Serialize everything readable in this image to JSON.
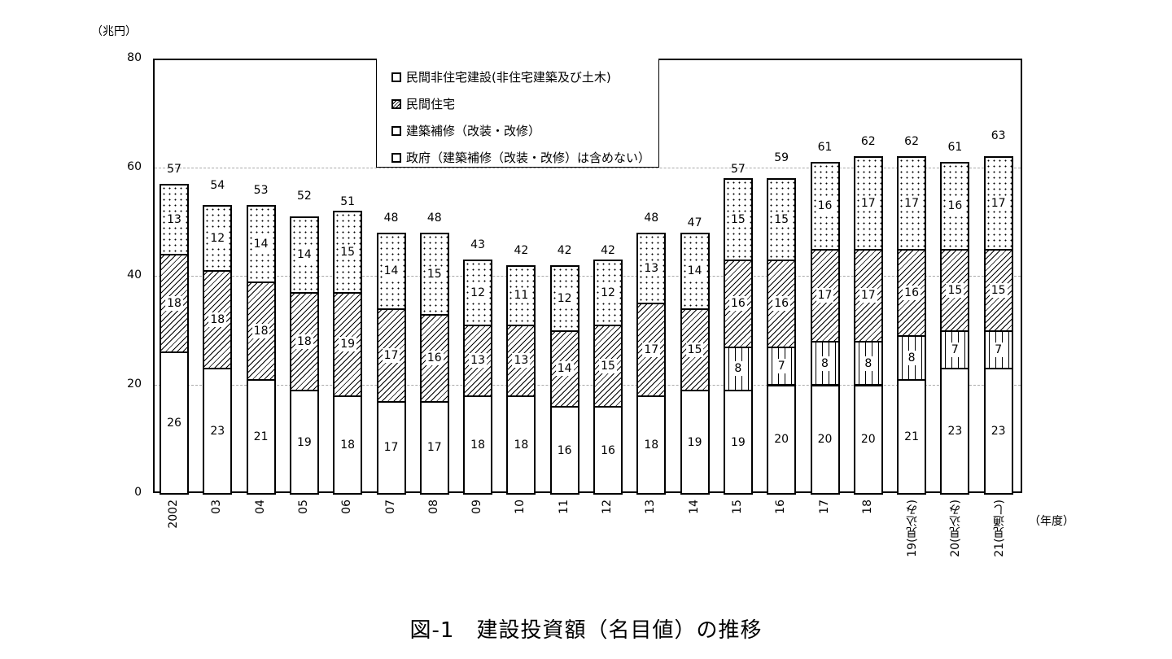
{
  "chart_data": {
    "type": "bar",
    "stacked": true,
    "title": "図-1　建設投資額（名目値）の推移",
    "xlabel": "（年度）",
    "ylabel": "（兆円）",
    "ylim": [
      0,
      80
    ],
    "yticks": [
      0,
      20,
      40,
      60,
      80
    ],
    "grid": true,
    "legend_position": "top-center inside",
    "categories": [
      "2002",
      "03",
      "04",
      "05",
      "06",
      "07",
      "08",
      "09",
      "10",
      "11",
      "12",
      "13",
      "14",
      "15",
      "16",
      "17",
      "18",
      "19(見込み)",
      "20(見込み)",
      "21(見通し)"
    ],
    "series": [
      {
        "name": "政府（建築補修（改装・改修）は含めない）",
        "pattern": "blank",
        "values": [
          26,
          23,
          21,
          19,
          18,
          17,
          17,
          18,
          18,
          16,
          16,
          18,
          19,
          19,
          20,
          20,
          20,
          21,
          23,
          23
        ]
      },
      {
        "name": "建築補修（改装・改修）",
        "pattern": "vertical-ticks",
        "values": [
          null,
          null,
          null,
          null,
          null,
          null,
          null,
          null,
          null,
          null,
          null,
          null,
          null,
          8,
          7,
          8,
          8,
          8,
          7,
          7
        ]
      },
      {
        "name": "民間住宅",
        "pattern": "diagonal-hatch",
        "values": [
          18,
          18,
          18,
          18,
          19,
          17,
          16,
          13,
          13,
          14,
          15,
          17,
          15,
          16,
          16,
          17,
          17,
          16,
          15,
          15
        ]
      },
      {
        "name": "民間非住宅建設(非住宅建築及び土木)",
        "pattern": "dots",
        "values": [
          13,
          12,
          14,
          14,
          15,
          14,
          15,
          12,
          11,
          12,
          12,
          13,
          14,
          15,
          15,
          16,
          17,
          17,
          16,
          17
        ]
      }
    ],
    "totals": [
      57,
      54,
      53,
      52,
      51,
      48,
      48,
      43,
      42,
      42,
      42,
      48,
      47,
      57,
      59,
      61,
      62,
      62,
      61,
      63
    ]
  },
  "labels": {
    "unit": "（兆円）",
    "x_unit": "（年度）",
    "title": "図-1　建設投資額（名目値）の推移",
    "legend": [
      "民間非住宅建設(非住宅建築及び土木)",
      "民間住宅",
      "建築補修（改装・改修）",
      "政府（建築補修（改装・改修）は含めない）"
    ]
  }
}
